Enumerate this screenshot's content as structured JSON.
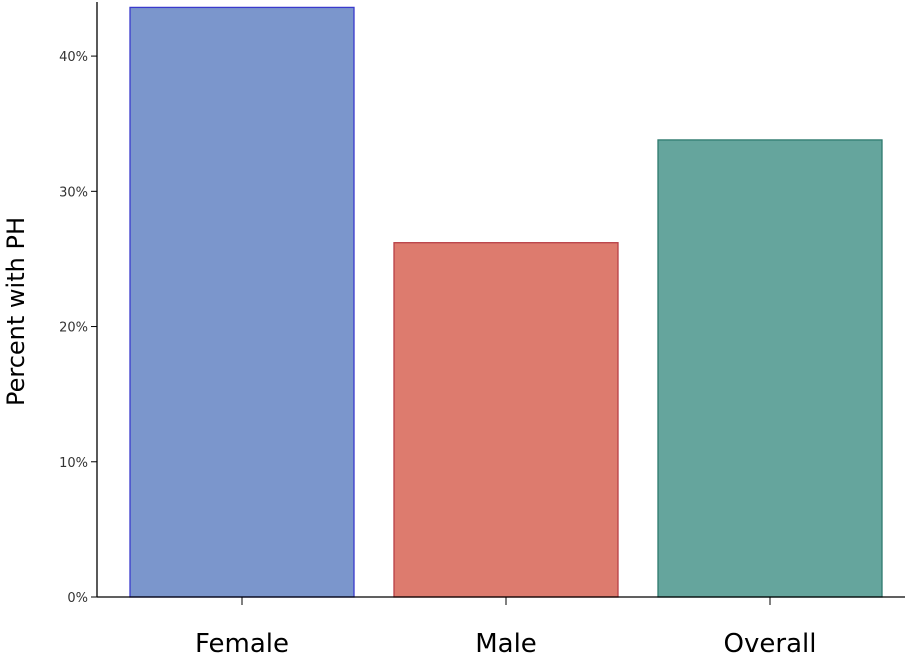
{
  "chart_data": {
    "type": "bar",
    "title": "",
    "xlabel": "",
    "ylabel": "Percent with PH",
    "categories": [
      "Female",
      "Male",
      "Overall"
    ],
    "values": [
      43.6,
      26.2,
      33.8
    ],
    "colors": [
      "#7b96cc",
      "#dd7b6e",
      "#65a59d"
    ],
    "edge_colors": [
      "#3a3acc",
      "#b83f45",
      "#2e7a6e"
    ],
    "yticks": [
      {
        "value": 0,
        "label": "0%"
      },
      {
        "value": 10,
        "label": "10%"
      },
      {
        "value": 20,
        "label": "20%"
      },
      {
        "value": 30,
        "label": "30%"
      },
      {
        "value": 40,
        "label": "40%"
      }
    ],
    "ylim": [
      0,
      44
    ],
    "grid": false,
    "legend": "none"
  }
}
